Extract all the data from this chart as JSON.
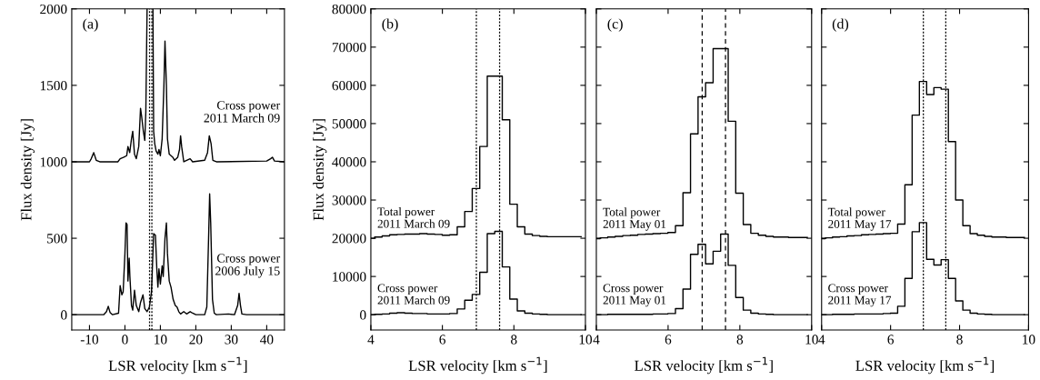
{
  "chart_data": [
    {
      "type": "line",
      "xlabel": "LSR velocity [km s$^{−1}$]",
      "ylabel": "Flux density [Jy]",
      "annotations": [
        "(a)"
      ],
      "xlim": [
        -15,
        45
      ],
      "xticks": [
        -10,
        0,
        10,
        20,
        30,
        40
      ],
      "ylim": [
        -100,
        2000
      ],
      "yticks": [
        0,
        500,
        1000,
        1500,
        2000
      ],
      "ref_lines": [
        {
          "axis": "x",
          "value": 6.95,
          "color": "#000000",
          "line_style": "dotted"
        },
        {
          "axis": "x",
          "value": 7.6,
          "color": "#000000",
          "line_style": "dotted"
        }
      ],
      "series": [
        {
          "name": "Cross power\n2011 March 09",
          "color": "#000000",
          "x": [
            -15,
            -10,
            -9.5,
            -8.8,
            -8.1,
            -7.1,
            -2.0,
            -1.35,
            -0.3,
            0.5,
            0.85,
            1.35,
            1.85,
            2.2,
            2.7,
            3.2,
            3.9,
            4.4,
            4.7,
            5.2,
            5.6,
            5.9,
            6.25,
            6.4,
            7.8,
            7.9,
            8.1,
            8.4,
            8.8,
            9.3,
            9.6,
            10.0,
            10.5,
            11.0,
            11.3,
            11.7,
            12.0,
            12.5,
            13.0,
            13.5,
            14.0,
            14.9,
            15.4,
            15.7,
            16.0,
            16.6,
            18.4,
            19.1,
            22.5,
            23.3,
            23.8,
            24.3,
            24.8,
            25.8,
            40,
            41.1,
            41.6,
            42.2,
            45
          ],
          "values": [
            1000,
            1000,
            1020,
            1060,
            1010,
            1000,
            1000,
            1020,
            1030,
            1040,
            1100,
            1060,
            1150,
            1200,
            1050,
            1020,
            1100,
            1350,
            1300,
            1200,
            1140,
            1330,
            2000,
            null,
            null,
            2000,
            1200,
            1120,
            1070,
            1050,
            1080,
            1040,
            1150,
            1500,
            1790,
            1500,
            1150,
            1050,
            1040,
            1030,
            1010,
            1030,
            1080,
            1170,
            1100,
            1000,
            1020,
            1000,
            1010,
            1060,
            1170,
            1120,
            1010,
            1000,
            1005,
            1020,
            1030,
            1005,
            1000
          ]
        },
        {
          "name": "Cross power\n2006 July 15",
          "color": "#000000",
          "x": [
            -15,
            -6,
            -5.2,
            -4.7,
            -4.2,
            -3.5,
            -1.8,
            -1.35,
            -0.85,
            -0.5,
            0,
            0.3,
            0.6,
            0.85,
            1.2,
            1.4,
            1.85,
            2.2,
            2.7,
            3.2,
            3.9,
            4.4,
            5.1,
            5.6,
            6.25,
            6.9,
            7.5,
            8.1,
            8.6,
            9.0,
            9.3,
            9.6,
            10.0,
            10.5,
            10.8,
            11.3,
            11.7,
            12.0,
            12.5,
            13.0,
            13.6,
            14.2,
            14.7,
            15.2,
            15.7,
            16.6,
            17.4,
            18.4,
            19.1,
            20,
            22.5,
            23.1,
            23.6,
            23.9,
            24.2,
            24.7,
            25.2,
            25.8,
            29.2,
            30.9,
            31.8,
            32.2,
            32.6,
            33.0,
            34.3,
            45
          ],
          "values": [
            0,
            0,
            20,
            55,
            15,
            0,
            10,
            190,
            130,
            150,
            400,
            600,
            590,
            220,
            370,
            250,
            60,
            30,
            160,
            60,
            20,
            80,
            130,
            40,
            20,
            50,
            150,
            530,
            520,
            300,
            180,
            300,
            200,
            320,
            250,
            500,
            600,
            400,
            220,
            180,
            100,
            60,
            50,
            20,
            5,
            20,
            5,
            20,
            10,
            0,
            0,
            50,
            500,
            790,
            600,
            100,
            10,
            0,
            5,
            0,
            60,
            140,
            60,
            5,
            0,
            0
          ]
        }
      ]
    },
    {
      "type": "step",
      "xlabel": "LSR velocity [km s$^{−1}$]",
      "ylabel": "Flux density [Jy]",
      "annotations": [
        "(b)"
      ],
      "xlim": [
        4,
        10
      ],
      "xticks": [
        4,
        6,
        8,
        10
      ],
      "ylim": [
        -4000,
        80000
      ],
      "yticks": [
        0,
        10000,
        20000,
        30000,
        40000,
        50000,
        60000,
        70000,
        80000
      ],
      "ref_lines": [
        {
          "axis": "x",
          "value": 6.95,
          "color": "#000000",
          "line_style": "dotted"
        },
        {
          "axis": "x",
          "value": 7.6,
          "color": "#000000",
          "line_style": "dotted"
        }
      ],
      "x": [
        4.0,
        4.21,
        4.42,
        4.63,
        4.84,
        5.05,
        5.26,
        5.47,
        5.68,
        5.89,
        6.1,
        6.31,
        6.52,
        6.73,
        6.94,
        7.15,
        7.36,
        7.57,
        7.78,
        7.99,
        8.2,
        8.41,
        8.62,
        8.83,
        9.04,
        9.25,
        9.46,
        9.67,
        9.88
      ],
      "series": [
        {
          "name": "Total power\n2011 March 09",
          "color": "#000000",
          "values": [
            20000,
            20300,
            20600,
            20900,
            21000,
            21100,
            21100,
            21200,
            21100,
            21000,
            20800,
            20900,
            23000,
            27000,
            33000,
            44000,
            62400,
            62400,
            51000,
            28900,
            23000,
            21100,
            20700,
            20500,
            20400,
            20400,
            20400,
            20400,
            20400
          ]
        },
        {
          "name": "Cross power\n2011 March 09",
          "color": "#000000",
          "values": [
            0,
            100,
            200,
            400,
            500,
            400,
            300,
            300,
            200,
            200,
            200,
            300,
            1500,
            3800,
            5300,
            11100,
            21200,
            21800,
            12500,
            4100,
            1000,
            400,
            200,
            100,
            0,
            0,
            0,
            0,
            0
          ]
        }
      ]
    },
    {
      "type": "step",
      "xlabel": "LSR velocity [km s$^{−1}$]",
      "annotations": [
        "(c)"
      ],
      "tick_labels": "x",
      "xlim": [
        4,
        10
      ],
      "xticks": [
        4,
        6,
        8,
        10
      ],
      "ylim": [
        -4000,
        80000
      ],
      "yticks": [
        0,
        10000,
        20000,
        30000,
        40000,
        50000,
        60000,
        70000,
        80000
      ],
      "ref_lines": [
        {
          "axis": "x",
          "value": 6.95,
          "color": "#000000",
          "line_style": "dashed"
        },
        {
          "axis": "x",
          "value": 7.6,
          "color": "#000000",
          "line_style": "dashed"
        }
      ],
      "x": [
        4.0,
        4.21,
        4.42,
        4.63,
        4.84,
        5.05,
        5.26,
        5.47,
        5.68,
        5.89,
        6.1,
        6.31,
        6.52,
        6.73,
        6.94,
        7.15,
        7.36,
        7.57,
        7.78,
        7.99,
        8.2,
        8.41,
        8.62,
        8.83,
        9.04,
        9.25,
        9.46,
        9.67,
        9.88
      ],
      "series": [
        {
          "name": "Total power\n2011 May 01",
          "color": "#000000",
          "values": [
            19900,
            20100,
            20300,
            20500,
            20700,
            20800,
            21000,
            21100,
            21200,
            21300,
            21500,
            23300,
            31900,
            47300,
            57000,
            60700,
            69600,
            69600,
            50600,
            31800,
            23600,
            21300,
            20800,
            20500,
            20300,
            20300,
            20200,
            20200,
            20200
          ]
        },
        {
          "name": "Cross power\n2011 May 01",
          "color": "#000000",
          "values": [
            0,
            0,
            100,
            100,
            100,
            100,
            100,
            100,
            200,
            200,
            300,
            1600,
            6700,
            15800,
            18400,
            13300,
            16600,
            21100,
            12900,
            4500,
            1200,
            400,
            200,
            100,
            0,
            0,
            0,
            0,
            0
          ]
        }
      ]
    },
    {
      "type": "step",
      "xlabel": "LSR velocity [km s$^{−1}$]",
      "annotations": [
        "(d)"
      ],
      "tick_labels": "x",
      "xlim": [
        4,
        10
      ],
      "xticks": [
        4,
        6,
        8,
        10
      ],
      "ylim": [
        -4000,
        80000
      ],
      "yticks": [
        0,
        10000,
        20000,
        30000,
        40000,
        50000,
        60000,
        70000,
        80000
      ],
      "ref_lines": [
        {
          "axis": "x",
          "value": 6.95,
          "color": "#000000",
          "line_style": "dotted"
        },
        {
          "axis": "x",
          "value": 7.6,
          "color": "#000000",
          "line_style": "dotted"
        }
      ],
      "x": [
        4.0,
        4.21,
        4.42,
        4.63,
        4.84,
        5.05,
        5.26,
        5.47,
        5.68,
        5.89,
        6.1,
        6.31,
        6.52,
        6.73,
        6.94,
        7.15,
        7.36,
        7.57,
        7.78,
        7.99,
        8.2,
        8.41,
        8.62,
        8.83,
        9.04,
        9.25,
        9.46,
        9.67,
        9.88
      ],
      "series": [
        {
          "name": "Total power\n2011 May 17",
          "color": "#000000",
          "values": [
            19900,
            20100,
            20300,
            20400,
            20600,
            20700,
            20900,
            21000,
            21100,
            21200,
            21300,
            23700,
            34000,
            52200,
            61000,
            57600,
            59400,
            59000,
            45300,
            30000,
            23300,
            21200,
            20800,
            20500,
            20300,
            20300,
            20200,
            20200,
            20200
          ]
        },
        {
          "name": "Cross power\n2011 May 17",
          "color": "#000000",
          "values": [
            0,
            0,
            100,
            100,
            100,
            200,
            200,
            200,
            200,
            300,
            400,
            2200,
            9500,
            21700,
            24100,
            14500,
            13000,
            14400,
            9500,
            3600,
            1200,
            400,
            200,
            100,
            0,
            0,
            0,
            0,
            0
          ]
        }
      ]
    }
  ]
}
